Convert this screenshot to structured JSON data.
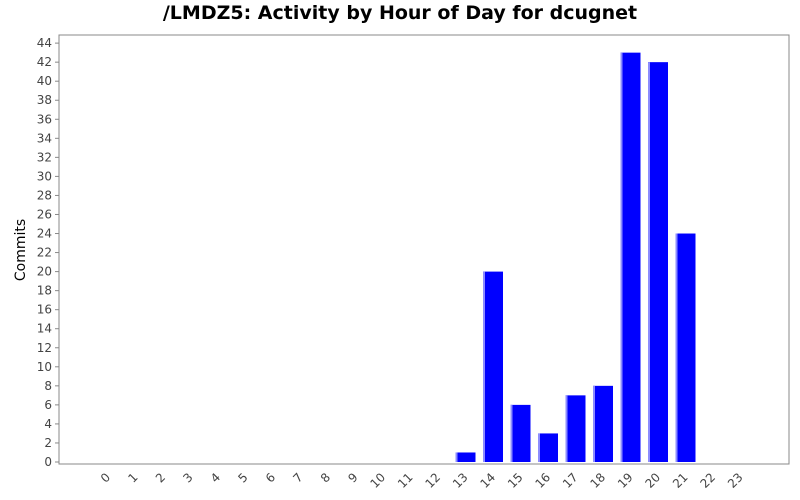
{
  "chart_data": {
    "type": "bar",
    "title": "/LMDZ5: Activity by Hour of Day for dcugnet",
    "xlabel": "",
    "ylabel": "Commits",
    "categories": [
      "0",
      "1",
      "2",
      "3",
      "4",
      "5",
      "6",
      "7",
      "8",
      "9",
      "10",
      "11",
      "12",
      "13",
      "14",
      "15",
      "16",
      "17",
      "18",
      "19",
      "20",
      "21",
      "22",
      "23"
    ],
    "values": [
      0,
      0,
      0,
      0,
      0,
      0,
      0,
      0,
      0,
      0,
      0,
      0,
      0,
      1,
      20,
      6,
      3,
      7,
      8,
      43,
      42,
      24,
      0,
      0
    ],
    "ylim": [
      0,
      45.5
    ],
    "yticks": [
      0,
      2,
      4,
      6,
      8,
      10,
      12,
      14,
      16,
      18,
      20,
      22,
      24,
      26,
      28,
      30,
      32,
      34,
      36,
      38,
      40,
      42,
      44
    ],
    "grid": false,
    "legend": "none",
    "colors": {
      "bar": "#0000ff",
      "bar_highlight": "#8c8cff",
      "axis": "#888888",
      "text": "#444444"
    }
  }
}
